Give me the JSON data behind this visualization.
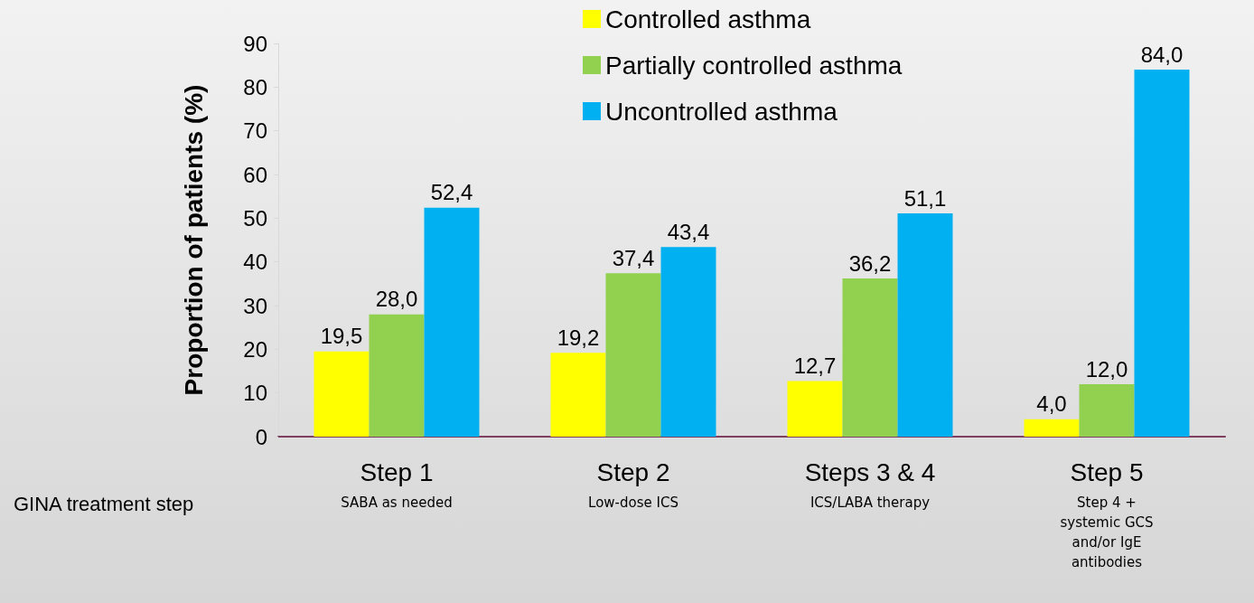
{
  "chart_data": {
    "type": "bar",
    "xlabel": "GINA treatment step",
    "ylabel": "Proportion of patients (%)",
    "categories": [
      "Step 1\nSABA as needed",
      "Step 2\nLow-dose ICS",
      "Steps 3 & 4\nICS/LABA therapy",
      "Step 5\nStep 4 +\nsystemic GCS\nand/or IgE\nantibodies"
    ],
    "series": [
      {
        "name": "Controlled asthma",
        "color": "#ffff00",
        "values": [
          19.5,
          19.2,
          12.7,
          4.0
        ],
        "value_labels": [
          "19,5",
          "19,2",
          "12,7",
          "4,0"
        ]
      },
      {
        "name": "Partially controlled asthma",
        "color": "#92d050",
        "values": [
          28.0,
          37.4,
          36.2,
          12.0
        ],
        "value_labels": [
          "28,0",
          "37,4",
          "36,2",
          "12,0"
        ]
      },
      {
        "name": "Uncontrolled asthma",
        "color": "#00b0f0",
        "values": [
          52.4,
          43.4,
          51.1,
          84.0
        ],
        "value_labels": [
          "52,4",
          "43,4",
          "51,1",
          "84,0"
        ]
      }
    ],
    "ylim": [
      0,
      90
    ],
    "yticks": [
      0,
      10,
      20,
      30,
      40,
      50,
      60,
      70,
      80,
      90
    ],
    "grid": false,
    "legend": "top"
  }
}
